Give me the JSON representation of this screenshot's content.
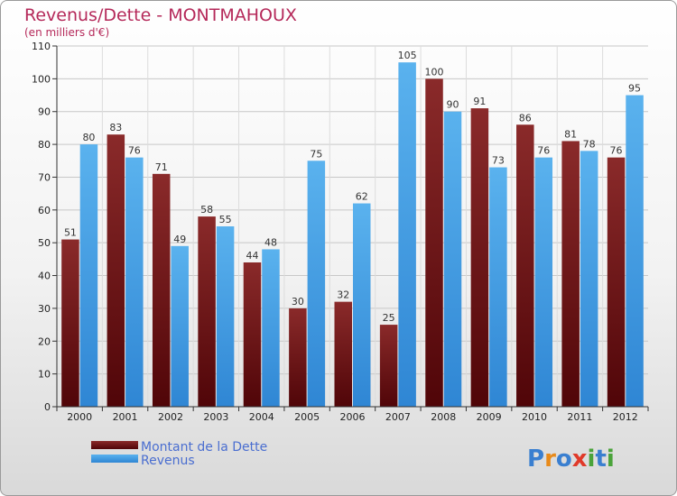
{
  "chart_data": {
    "type": "bar",
    "title": "Revenus/Dette - MONTMAHOUX",
    "subtitle": "(en milliers d'€)",
    "categories": [
      "2000",
      "2001",
      "2002",
      "2003",
      "2004",
      "2005",
      "2006",
      "2007",
      "2008",
      "2009",
      "2010",
      "2011",
      "2012"
    ],
    "series": [
      {
        "name": "Montant de la Dette",
        "color": "#6b0f14",
        "values": [
          51,
          83,
          71,
          58,
          44,
          30,
          32,
          25,
          100,
          91,
          86,
          81,
          76
        ]
      },
      {
        "name": "Revenus",
        "color": "#4aa3e6",
        "values": [
          80,
          76,
          49,
          55,
          48,
          75,
          62,
          105,
          90,
          73,
          76,
          78,
          95
        ]
      }
    ],
    "ylim": [
      0,
      110
    ],
    "yticks": [
      0,
      10,
      20,
      30,
      40,
      50,
      60,
      70,
      80,
      90,
      100,
      110
    ],
    "grid": true,
    "legend": "bottom-left"
  },
  "logo": {
    "text": "Proxiti",
    "colors": [
      "#3a7fd0",
      "#e88a1a",
      "#3a7fd0",
      "#e03a2a",
      "#4aa33a",
      "#3a7fd0",
      "#4aa33a"
    ]
  }
}
